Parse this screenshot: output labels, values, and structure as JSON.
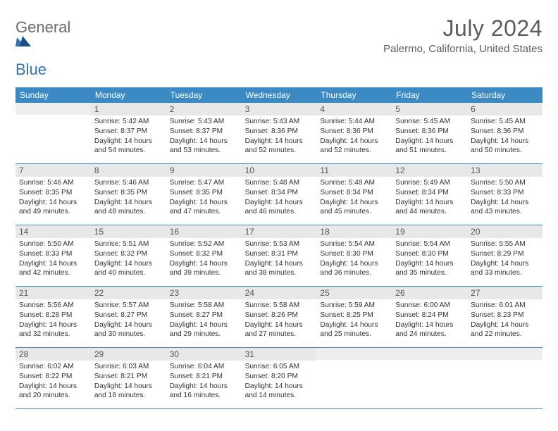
{
  "logo": {
    "line1": "General",
    "line2": "Blue"
  },
  "title": "July 2024",
  "location": "Palermo, California, United States",
  "colors": {
    "header_bar": "#3b8ac4",
    "daynum_bg": "#e8e8e8",
    "blank_bg": "#eeeeee",
    "text": "#333333",
    "title_text": "#5c5c5c",
    "logo_gray": "#6a6a6a",
    "logo_blue": "#2f72b8",
    "rule": "#3b8ac4",
    "background": "#ffffff"
  },
  "dow": [
    "Sunday",
    "Monday",
    "Tuesday",
    "Wednesday",
    "Thursday",
    "Friday",
    "Saturday"
  ],
  "weeks": [
    [
      {
        "blank": true
      },
      {
        "day": "1",
        "sunrise": "5:42 AM",
        "sunset": "8:37 PM",
        "daylight": "14 hours and 54 minutes."
      },
      {
        "day": "2",
        "sunrise": "5:43 AM",
        "sunset": "8:37 PM",
        "daylight": "14 hours and 53 minutes."
      },
      {
        "day": "3",
        "sunrise": "5:43 AM",
        "sunset": "8:36 PM",
        "daylight": "14 hours and 52 minutes."
      },
      {
        "day": "4",
        "sunrise": "5:44 AM",
        "sunset": "8:36 PM",
        "daylight": "14 hours and 52 minutes."
      },
      {
        "day": "5",
        "sunrise": "5:45 AM",
        "sunset": "8:36 PM",
        "daylight": "14 hours and 51 minutes."
      },
      {
        "day": "6",
        "sunrise": "5:45 AM",
        "sunset": "8:36 PM",
        "daylight": "14 hours and 50 minutes."
      }
    ],
    [
      {
        "day": "7",
        "sunrise": "5:46 AM",
        "sunset": "8:35 PM",
        "daylight": "14 hours and 49 minutes."
      },
      {
        "day": "8",
        "sunrise": "5:46 AM",
        "sunset": "8:35 PM",
        "daylight": "14 hours and 48 minutes."
      },
      {
        "day": "9",
        "sunrise": "5:47 AM",
        "sunset": "8:35 PM",
        "daylight": "14 hours and 47 minutes."
      },
      {
        "day": "10",
        "sunrise": "5:48 AM",
        "sunset": "8:34 PM",
        "daylight": "14 hours and 46 minutes."
      },
      {
        "day": "11",
        "sunrise": "5:48 AM",
        "sunset": "8:34 PM",
        "daylight": "14 hours and 45 minutes."
      },
      {
        "day": "12",
        "sunrise": "5:49 AM",
        "sunset": "8:34 PM",
        "daylight": "14 hours and 44 minutes."
      },
      {
        "day": "13",
        "sunrise": "5:50 AM",
        "sunset": "8:33 PM",
        "daylight": "14 hours and 43 minutes."
      }
    ],
    [
      {
        "day": "14",
        "sunrise": "5:50 AM",
        "sunset": "8:33 PM",
        "daylight": "14 hours and 42 minutes."
      },
      {
        "day": "15",
        "sunrise": "5:51 AM",
        "sunset": "8:32 PM",
        "daylight": "14 hours and 40 minutes."
      },
      {
        "day": "16",
        "sunrise": "5:52 AM",
        "sunset": "8:32 PM",
        "daylight": "14 hours and 39 minutes."
      },
      {
        "day": "17",
        "sunrise": "5:53 AM",
        "sunset": "8:31 PM",
        "daylight": "14 hours and 38 minutes."
      },
      {
        "day": "18",
        "sunrise": "5:54 AM",
        "sunset": "8:30 PM",
        "daylight": "14 hours and 36 minutes."
      },
      {
        "day": "19",
        "sunrise": "5:54 AM",
        "sunset": "8:30 PM",
        "daylight": "14 hours and 35 minutes."
      },
      {
        "day": "20",
        "sunrise": "5:55 AM",
        "sunset": "8:29 PM",
        "daylight": "14 hours and 33 minutes."
      }
    ],
    [
      {
        "day": "21",
        "sunrise": "5:56 AM",
        "sunset": "8:28 PM",
        "daylight": "14 hours and 32 minutes."
      },
      {
        "day": "22",
        "sunrise": "5:57 AM",
        "sunset": "8:27 PM",
        "daylight": "14 hours and 30 minutes."
      },
      {
        "day": "23",
        "sunrise": "5:58 AM",
        "sunset": "8:27 PM",
        "daylight": "14 hours and 29 minutes."
      },
      {
        "day": "24",
        "sunrise": "5:58 AM",
        "sunset": "8:26 PM",
        "daylight": "14 hours and 27 minutes."
      },
      {
        "day": "25",
        "sunrise": "5:59 AM",
        "sunset": "8:25 PM",
        "daylight": "14 hours and 25 minutes."
      },
      {
        "day": "26",
        "sunrise": "6:00 AM",
        "sunset": "8:24 PM",
        "daylight": "14 hours and 24 minutes."
      },
      {
        "day": "27",
        "sunrise": "6:01 AM",
        "sunset": "8:23 PM",
        "daylight": "14 hours and 22 minutes."
      }
    ],
    [
      {
        "day": "28",
        "sunrise": "6:02 AM",
        "sunset": "8:22 PM",
        "daylight": "14 hours and 20 minutes."
      },
      {
        "day": "29",
        "sunrise": "6:03 AM",
        "sunset": "8:21 PM",
        "daylight": "14 hours and 18 minutes."
      },
      {
        "day": "30",
        "sunrise": "6:04 AM",
        "sunset": "8:21 PM",
        "daylight": "14 hours and 16 minutes."
      },
      {
        "day": "31",
        "sunrise": "6:05 AM",
        "sunset": "8:20 PM",
        "daylight": "14 hours and 14 minutes."
      },
      {
        "blank": true
      },
      {
        "blank": true
      },
      {
        "blank": true
      }
    ]
  ],
  "labels": {
    "sunrise": "Sunrise: ",
    "sunset": "Sunset: ",
    "daylight": "Daylight: "
  }
}
